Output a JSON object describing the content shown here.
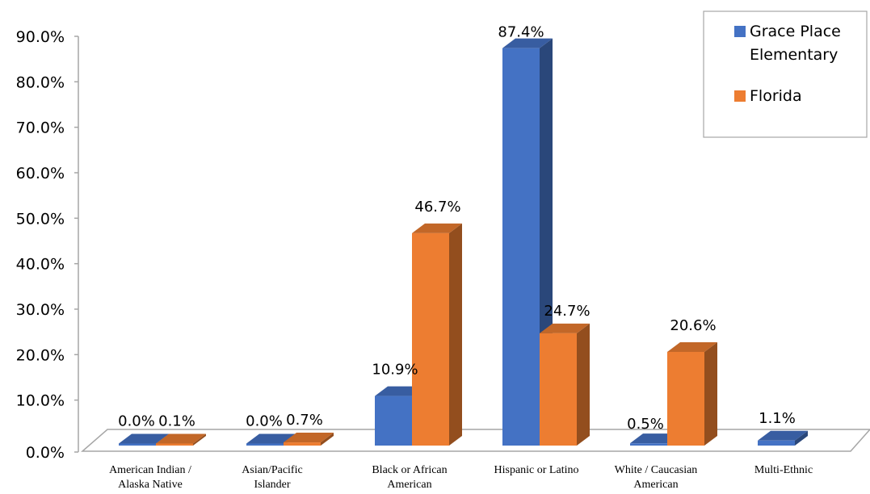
{
  "chart_data": {
    "type": "bar",
    "style": "3d-clustered-column",
    "categories": [
      [
        "American Indian /",
        "Alaska Native"
      ],
      [
        "Asian/Pacific",
        "Islander"
      ],
      [
        "Black or African",
        "American"
      ],
      [
        "Hispanic or Latino"
      ],
      [
        "White / Caucasian",
        "American"
      ],
      [
        "Multi-Ethnic"
      ]
    ],
    "series": [
      {
        "name": [
          "Grace Place",
          "Elementary"
        ],
        "color": "#4472C4",
        "values": [
          0.0,
          0.0,
          10.9,
          87.4,
          0.5,
          1.1
        ],
        "labels": [
          "0.0%",
          "0.0%",
          "10.9%",
          "87.4%",
          "0.5%",
          "1.1%"
        ]
      },
      {
        "name": [
          "Florida"
        ],
        "color": "#ED7D31",
        "values": [
          0.1,
          0.7,
          46.7,
          24.7,
          20.6,
          null
        ],
        "labels": [
          "0.1%",
          "0.7%",
          "46.7%",
          "24.7%",
          "20.6%",
          null
        ]
      }
    ],
    "y_ticks": [
      "0.0%",
      "10.0%",
      "20.0%",
      "30.0%",
      "40.0%",
      "50.0%",
      "60.0%",
      "70.0%",
      "80.0%",
      "90.0%"
    ],
    "ylim": [
      0,
      90
    ],
    "legend_position": "top-right",
    "grid": false
  }
}
